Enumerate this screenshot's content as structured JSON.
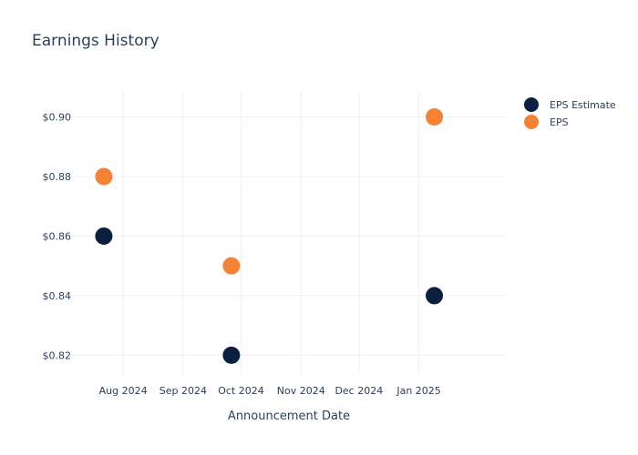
{
  "chart_data": {
    "type": "scatter",
    "title": "Earnings History",
    "xlabel": "Announcement Date",
    "ylabel": "",
    "x_ticks": [
      {
        "date": "2024-08-01",
        "label": "Aug 2024"
      },
      {
        "date": "2024-09-01",
        "label": "Sep 2024"
      },
      {
        "date": "2024-10-01",
        "label": "Oct 2024"
      },
      {
        "date": "2024-11-01",
        "label": "Nov 2024"
      },
      {
        "date": "2024-12-01",
        "label": "Dec 2024"
      },
      {
        "date": "2025-01-01",
        "label": "Jan 2025"
      }
    ],
    "y_ticks": [
      {
        "value": 0.82,
        "label": "$0.82"
      },
      {
        "value": 0.84,
        "label": "$0.84"
      },
      {
        "value": 0.86,
        "label": "$0.86"
      },
      {
        "value": 0.88,
        "label": "$0.88"
      },
      {
        "value": 0.9,
        "label": "$0.90"
      }
    ],
    "xlim": [
      "2024-07-06",
      "2025-02-15"
    ],
    "ylim": [
      0.8134,
      0.9087
    ],
    "grid": true,
    "legend_position": "top-right",
    "series": [
      {
        "name": "EPS Estimate",
        "color": "#0b1f40",
        "points": [
          {
            "x": "2024-07-22",
            "y": 0.86
          },
          {
            "x": "2024-09-26",
            "y": 0.82
          },
          {
            "x": "2025-01-09",
            "y": 0.84
          }
        ]
      },
      {
        "name": "EPS",
        "color": "#f58134",
        "points": [
          {
            "x": "2024-07-22",
            "y": 0.88
          },
          {
            "x": "2024-09-26",
            "y": 0.85
          },
          {
            "x": "2025-01-09",
            "y": 0.9
          }
        ]
      }
    ]
  }
}
